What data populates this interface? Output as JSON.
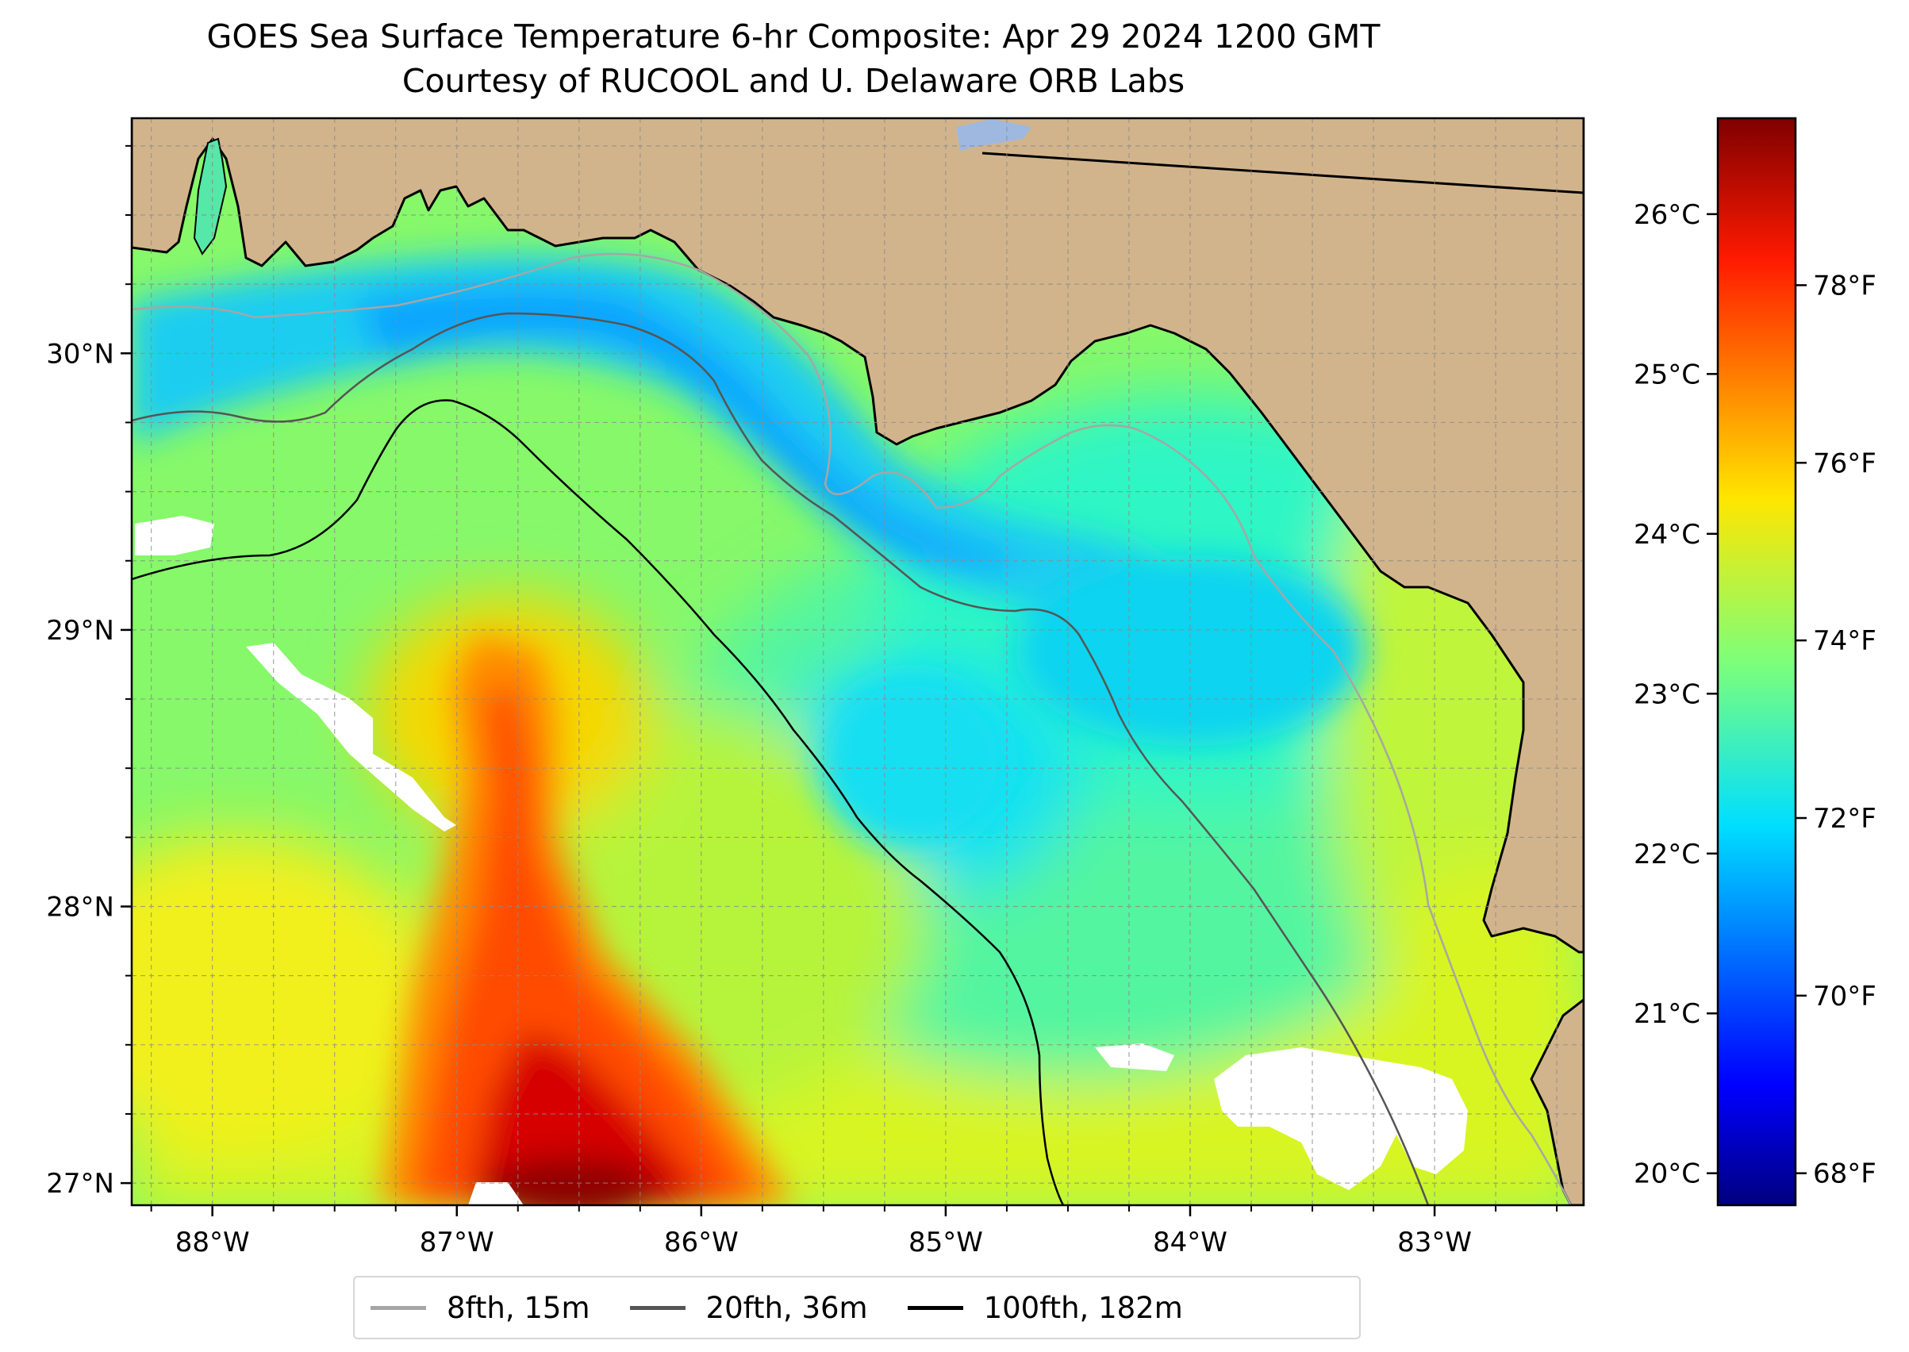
{
  "title": {
    "line1": "GOES Sea Surface Temperature 6-hr Composite: Apr 29 2024 1200 GMT",
    "line2": "Courtesy of RUCOOL and U. Delaware ORB Labs"
  },
  "map": {
    "extent": {
      "lon_min": -88.33,
      "lon_max": -82.39,
      "lat_min": 26.92,
      "lat_max": 30.85
    },
    "land_color": "#d2b48c",
    "lon_ticks": [
      {
        "value": -88,
        "label": "88°W"
      },
      {
        "value": -87,
        "label": "87°W"
      },
      {
        "value": -86,
        "label": "86°W"
      },
      {
        "value": -85,
        "label": "85°W"
      },
      {
        "value": -84,
        "label": "84°W"
      },
      {
        "value": -83,
        "label": "83°W"
      }
    ],
    "lat_ticks": [
      {
        "value": 27,
        "label": "27°N"
      },
      {
        "value": 28,
        "label": "28°N"
      },
      {
        "value": 29,
        "label": "29°N"
      },
      {
        "value": 30,
        "label": "30°N"
      }
    ],
    "grid": true,
    "grid_style": "dashed"
  },
  "colorbar": {
    "colormap": "jet",
    "celsius_ticks": [
      {
        "value": 20,
        "label": "20°C"
      },
      {
        "value": 21,
        "label": "21°C"
      },
      {
        "value": 22,
        "label": "22°C"
      },
      {
        "value": 23,
        "label": "23°C"
      },
      {
        "value": 24,
        "label": "24°C"
      },
      {
        "value": 25,
        "label": "25°C"
      },
      {
        "value": 26,
        "label": "26°C"
      }
    ],
    "fahrenheit_ticks": [
      {
        "value": 68,
        "label": "68°F"
      },
      {
        "value": 70,
        "label": "70°F"
      },
      {
        "value": 72,
        "label": "72°F"
      },
      {
        "value": 74,
        "label": "74°F"
      },
      {
        "value": 76,
        "label": "76°F"
      },
      {
        "value": 78,
        "label": "78°F"
      }
    ],
    "range_celsius": [
      19.8,
      26.6
    ]
  },
  "legend": {
    "items": [
      {
        "label": "8fth, 15m",
        "color": "#a6a6a6"
      },
      {
        "label": "20fth, 36m",
        "color": "#555555"
      },
      {
        "label": "100fth, 182m",
        "color": "#000000"
      }
    ]
  }
}
